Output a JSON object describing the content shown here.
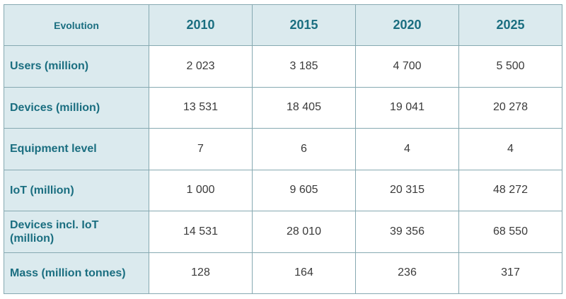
{
  "table": {
    "corner_label": "Evolution",
    "years": [
      "2010",
      "2015",
      "2020",
      "2025"
    ],
    "rows": [
      {
        "label": "Users (million)",
        "values": [
          "2 023",
          "3 185",
          "4 700",
          "5 500"
        ]
      },
      {
        "label": "Devices (million)",
        "values": [
          "13 531",
          "18 405",
          "19 041",
          "20 278"
        ]
      },
      {
        "label": "Equipment level",
        "values": [
          "7",
          "6",
          "4",
          "4"
        ]
      },
      {
        "label": "IoT (million)",
        "values": [
          "1 000",
          "9 605",
          "20 315",
          "48 272"
        ]
      },
      {
        "label": "Devices incl. IoT (million)",
        "values": [
          "14 531",
          "28 010",
          "39 356",
          "68 550"
        ]
      },
      {
        "label": "Mass (million tonnes)",
        "values": [
          "128",
          "164",
          "236",
          "317"
        ]
      }
    ]
  },
  "colors": {
    "header_background": "#dbeaee",
    "header_text": "#1a6e80",
    "border": "#86a9b1",
    "cell_text": "#3a3a3a"
  }
}
